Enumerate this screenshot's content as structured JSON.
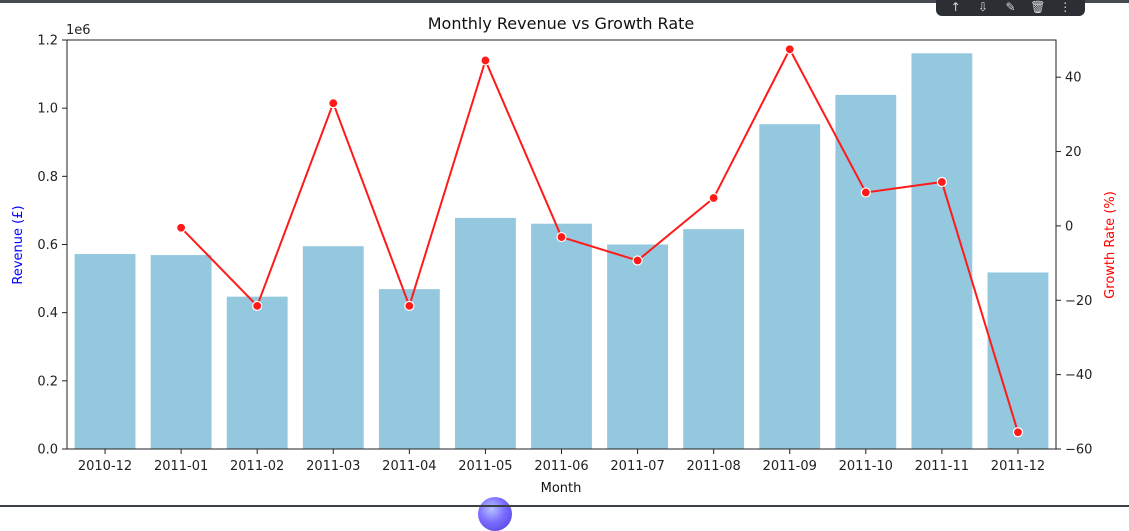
{
  "toolbar": {
    "buttons": [
      {
        "name": "move-up-icon",
        "glyph": "↑"
      },
      {
        "name": "move-down-icon",
        "glyph": "⇩"
      },
      {
        "name": "edit-icon",
        "glyph": "✎"
      },
      {
        "name": "delete-icon",
        "glyph": "🗑"
      },
      {
        "name": "more-icon",
        "glyph": "⋮"
      }
    ]
  },
  "chart_data": {
    "type": "bar",
    "title": "Monthly Revenue vs Growth Rate",
    "xlabel": "Month",
    "ylabel": "Revenue (£)",
    "ylabel_color": "#0000ff",
    "y_offset_label": "1e6",
    "ylim": [
      0,
      1.2
    ],
    "yticks": [
      "0.0",
      "0.2",
      "0.4",
      "0.6",
      "0.8",
      "1.0",
      "1.2"
    ],
    "ylabel_right": "Growth Rate (%)",
    "ylabel_right_color": "#ff0000",
    "ylim_right": [
      -60,
      50
    ],
    "yticks_right": [
      "−60",
      "−40",
      "−20",
      "0",
      "20",
      "40"
    ],
    "categories": [
      "2010-12",
      "2011-01",
      "2011-02",
      "2011-03",
      "2011-04",
      "2011-05",
      "2011-06",
      "2011-07",
      "2011-08",
      "2011-09",
      "2011-10",
      "2011-11",
      "2011-12"
    ],
    "series": [
      {
        "type": "bar",
        "axis": "left",
        "color": "#94c8df",
        "values": [
          0.572,
          0.569,
          0.447,
          0.595,
          0.469,
          0.678,
          0.661,
          0.6,
          0.645,
          0.953,
          1.039,
          1.161,
          0.518
        ]
      },
      {
        "type": "line",
        "axis": "right",
        "color": "#ff1a1a",
        "values": [
          null,
          -0.5,
          -21.5,
          33.0,
          -21.5,
          44.5,
          -3.0,
          -9.3,
          7.5,
          47.5,
          9.0,
          11.8,
          -55.5
        ]
      }
    ],
    "grid": false
  }
}
